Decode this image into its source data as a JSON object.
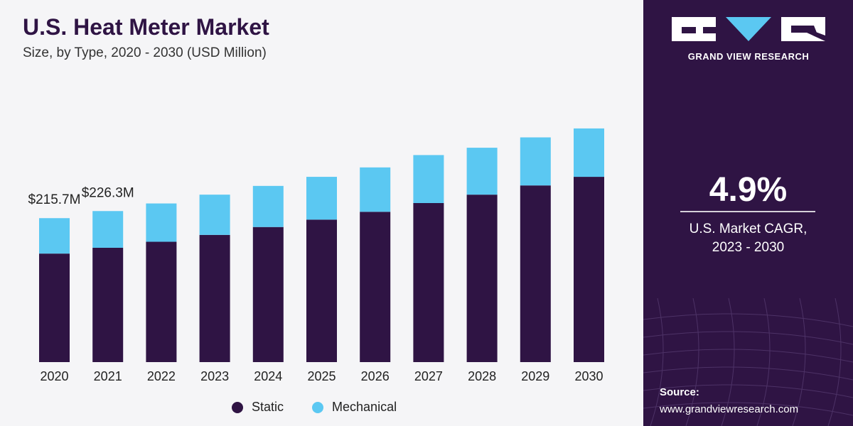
{
  "header": {
    "title": "U.S. Heat Meter Market",
    "subtitle": "Size, by Type, 2020 - 2030 (USD Million)"
  },
  "sidebar": {
    "brand": "GRAND VIEW RESEARCH",
    "cagr_value": "4.9%",
    "cagr_label_line1": "U.S. Market CAGR,",
    "cagr_label_line2": "2023 - 2030",
    "source_title": "Source:",
    "source_url": "www.grandviewresearch.com"
  },
  "colors": {
    "static": "#2f1444",
    "mechanical": "#5bc8f2",
    "sidebar_bg": "#2f1444"
  },
  "chart_data": {
    "type": "bar",
    "stacked": true,
    "categories": [
      "2020",
      "2021",
      "2022",
      "2023",
      "2024",
      "2025",
      "2026",
      "2027",
      "2028",
      "2029",
      "2030"
    ],
    "series": [
      {
        "name": "Static",
        "values": [
          162.6,
          171.3,
          180.3,
          190.6,
          202.4,
          213.5,
          225.2,
          238.3,
          250.9,
          264.7,
          277.6
        ]
      },
      {
        "name": "Mechanical",
        "values": [
          53.1,
          55.0,
          57.4,
          60.3,
          61.6,
          64.1,
          66.5,
          71.9,
          70.3,
          72.0,
          72.5
        ]
      }
    ],
    "annotations": [
      {
        "category": "2020",
        "text": "$215.7M"
      },
      {
        "category": "2021",
        "text": "$226.3M"
      }
    ],
    "legend_position": "bottom",
    "grid": false
  }
}
